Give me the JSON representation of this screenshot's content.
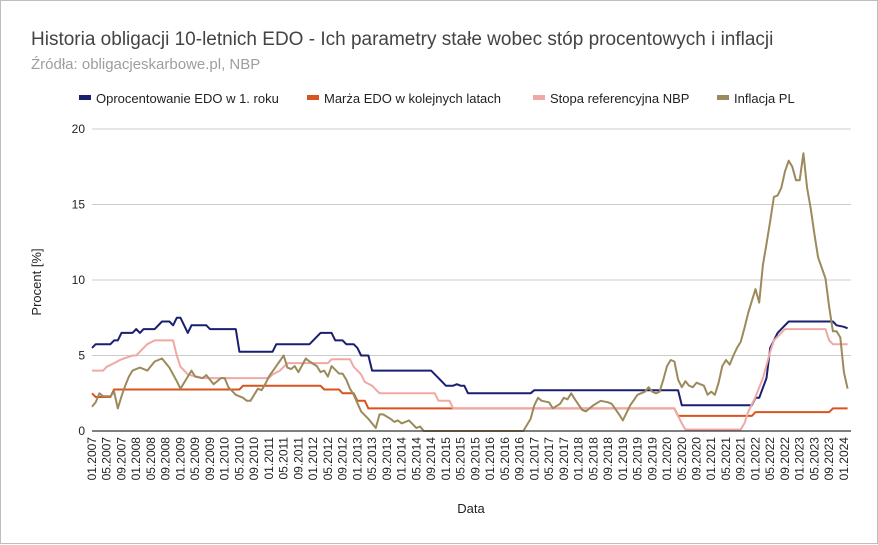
{
  "chart_data": {
    "type": "line",
    "title": "Historia obligacji 10-letnich EDO - Ich parametry stałe wobec stóp procentowych i inflacji",
    "subtitle": "Źródła: obligacjeskarbowe.pl, NBP",
    "xlabel": "Data",
    "ylabel": "Procent [%]",
    "ylim": [
      0,
      20
    ],
    "yticks": [
      "0",
      "5",
      "10",
      "15",
      "20"
    ],
    "grid": true,
    "legend": "top",
    "xticks": [
      "01.2007",
      "05.2007",
      "09.2007",
      "01.2008",
      "05.2008",
      "09.2008",
      "01.2009",
      "05.2009",
      "09.2009",
      "01.2010",
      "05.2010",
      "09.2010",
      "01.2011",
      "05.2011",
      "09.2011",
      "01.2012",
      "05.2012",
      "09.2012",
      "01.2013",
      "05.2013",
      "09.2013",
      "01.2014",
      "05.2014",
      "09.2014",
      "01.2015",
      "05.2015",
      "09.2015",
      "01.2016",
      "05.2016",
      "09.2016",
      "01.2017",
      "05.2017",
      "09.2017",
      "01.2018",
      "05.2018",
      "09.2018",
      "01.2019",
      "05.2019",
      "09.2019",
      "01.2020",
      "05.2020",
      "09.2020",
      "01.2021",
      "05.2021",
      "09.2021",
      "01.2022",
      "05.2022",
      "09.2022",
      "01.2023",
      "05.2023",
      "09.2023",
      "01.2024"
    ],
    "series": [
      {
        "name": "Oprocentowanie EDO w 1. roku",
        "color": "#1a1f71",
        "points": [
          [
            "2007-01",
            5.5
          ],
          [
            "2007-02",
            5.75
          ],
          [
            "2007-06",
            5.75
          ],
          [
            "2007-07",
            6.0
          ],
          [
            "2007-08",
            6.0
          ],
          [
            "2007-09",
            6.5
          ],
          [
            "2007-12",
            6.5
          ],
          [
            "2008-01",
            6.75
          ],
          [
            "2008-02",
            6.5
          ],
          [
            "2008-03",
            6.75
          ],
          [
            "2008-06",
            6.75
          ],
          [
            "2008-08",
            7.25
          ],
          [
            "2008-10",
            7.25
          ],
          [
            "2008-11",
            7.0
          ],
          [
            "2008-12",
            7.5
          ],
          [
            "2009-01",
            7.5
          ],
          [
            "2009-03",
            6.5
          ],
          [
            "2009-04",
            7.0
          ],
          [
            "2009-08",
            7.0
          ],
          [
            "2009-09",
            6.75
          ],
          [
            "2010-04",
            6.75
          ],
          [
            "2010-05",
            5.25
          ],
          [
            "2011-02",
            5.25
          ],
          [
            "2011-03",
            5.75
          ],
          [
            "2011-12",
            5.75
          ],
          [
            "2012-01",
            6.0
          ],
          [
            "2012-03",
            6.5
          ],
          [
            "2012-06",
            6.5
          ],
          [
            "2012-07",
            6.0
          ],
          [
            "2012-09",
            6.0
          ],
          [
            "2012-10",
            5.75
          ],
          [
            "2012-12",
            5.75
          ],
          [
            "2013-01",
            5.5
          ],
          [
            "2013-02",
            5.0
          ],
          [
            "2013-04",
            5.0
          ],
          [
            "2013-05",
            4.0
          ],
          [
            "2014-09",
            4.0
          ],
          [
            "2014-11",
            3.5
          ],
          [
            "2015-01",
            3.0
          ],
          [
            "2015-03",
            3.0
          ],
          [
            "2015-04",
            3.1
          ],
          [
            "2015-05",
            3.0
          ],
          [
            "2015-06",
            3.0
          ],
          [
            "2015-07",
            2.5
          ],
          [
            "2016-12",
            2.5
          ],
          [
            "2017-01",
            2.7
          ],
          [
            "2020-04",
            2.7
          ],
          [
            "2020-05",
            1.7
          ],
          [
            "2021-12",
            1.7
          ],
          [
            "2022-01",
            2.2
          ],
          [
            "2022-02",
            2.2
          ],
          [
            "2022-04",
            3.5
          ],
          [
            "2022-05",
            5.5
          ],
          [
            "2022-07",
            6.5
          ],
          [
            "2022-08",
            6.75
          ],
          [
            "2022-10",
            7.25
          ],
          [
            "2023-10",
            7.25
          ],
          [
            "2023-11",
            7.0
          ],
          [
            "2024-01",
            6.9
          ],
          [
            "2024-02",
            6.8
          ]
        ]
      },
      {
        "name": "Marża EDO w kolejnych latach",
        "color": "#d9531e",
        "points": [
          [
            "2007-01",
            2.5
          ],
          [
            "2007-02",
            2.25
          ],
          [
            "2007-06",
            2.25
          ],
          [
            "2007-07",
            2.75
          ],
          [
            "2010-05",
            2.75
          ],
          [
            "2010-06",
            3.0
          ],
          [
            "2012-03",
            3.0
          ],
          [
            "2012-04",
            2.75
          ],
          [
            "2012-08",
            2.75
          ],
          [
            "2012-09",
            2.5
          ],
          [
            "2012-12",
            2.5
          ],
          [
            "2013-01",
            2.0
          ],
          [
            "2013-03",
            2.0
          ],
          [
            "2013-04",
            1.5
          ],
          [
            "2020-03",
            1.5
          ],
          [
            "2020-04",
            1.0
          ],
          [
            "2021-12",
            1.0
          ],
          [
            "2022-01",
            1.25
          ],
          [
            "2023-09",
            1.25
          ],
          [
            "2023-10",
            1.5
          ],
          [
            "2024-02",
            1.5
          ]
        ]
      },
      {
        "name": "Stopa referencyjna NBP",
        "color": "#f0a8a4",
        "points": [
          [
            "2007-01",
            4.0
          ],
          [
            "2007-04",
            4.0
          ],
          [
            "2007-05",
            4.25
          ],
          [
            "2007-07",
            4.5
          ],
          [
            "2007-09",
            4.75
          ],
          [
            "2007-12",
            5.0
          ],
          [
            "2008-01",
            5.0
          ],
          [
            "2008-02",
            5.25
          ],
          [
            "2008-03",
            5.5
          ],
          [
            "2008-04",
            5.75
          ],
          [
            "2008-06",
            6.0
          ],
          [
            "2008-11",
            6.0
          ],
          [
            "2008-12",
            5.0
          ],
          [
            "2009-01",
            4.25
          ],
          [
            "2009-02",
            4.0
          ],
          [
            "2009-03",
            3.75
          ],
          [
            "2009-07",
            3.5
          ],
          [
            "2011-01",
            3.5
          ],
          [
            "2011-02",
            3.75
          ],
          [
            "2011-04",
            4.0
          ],
          [
            "2011-05",
            4.25
          ],
          [
            "2011-06",
            4.5
          ],
          [
            "2012-05",
            4.5
          ],
          [
            "2012-06",
            4.75
          ],
          [
            "2012-11",
            4.75
          ],
          [
            "2012-12",
            4.25
          ],
          [
            "2013-01",
            4.0
          ],
          [
            "2013-02",
            3.75
          ],
          [
            "2013-03",
            3.25
          ],
          [
            "2013-05",
            3.0
          ],
          [
            "2013-07",
            2.5
          ],
          [
            "2014-10",
            2.5
          ],
          [
            "2014-11",
            2.0
          ],
          [
            "2015-02",
            2.0
          ],
          [
            "2015-03",
            1.5
          ],
          [
            "2020-03",
            1.5
          ],
          [
            "2020-04",
            1.0
          ],
          [
            "2020-05",
            0.5
          ],
          [
            "2020-06",
            0.1
          ],
          [
            "2021-09",
            0.1
          ],
          [
            "2021-10",
            0.5
          ],
          [
            "2021-11",
            1.25
          ],
          [
            "2022-01",
            2.25
          ],
          [
            "2022-03",
            3.5
          ],
          [
            "2022-05",
            5.25
          ],
          [
            "2022-06",
            6.0
          ],
          [
            "2022-09",
            6.75
          ],
          [
            "2023-08",
            6.75
          ],
          [
            "2023-09",
            6.0
          ],
          [
            "2023-10",
            5.75
          ],
          [
            "2024-02",
            5.75
          ]
        ]
      },
      {
        "name": "Inflacja PL",
        "color": "#9c8a5c",
        "points": [
          [
            "2007-01",
            1.6
          ],
          [
            "2007-02",
            1.9
          ],
          [
            "2007-03",
            2.5
          ],
          [
            "2007-04",
            2.3
          ],
          [
            "2007-06",
            2.3
          ],
          [
            "2007-07",
            2.6
          ],
          [
            "2007-08",
            1.5
          ],
          [
            "2007-09",
            2.3
          ],
          [
            "2007-10",
            3.0
          ],
          [
            "2007-11",
            3.6
          ],
          [
            "2007-12",
            4.0
          ],
          [
            "2008-02",
            4.2
          ],
          [
            "2008-04",
            4.0
          ],
          [
            "2008-06",
            4.6
          ],
          [
            "2008-08",
            4.8
          ],
          [
            "2008-10",
            4.2
          ],
          [
            "2008-12",
            3.3
          ],
          [
            "2009-01",
            2.8
          ],
          [
            "2009-03",
            3.6
          ],
          [
            "2009-04",
            4.0
          ],
          [
            "2009-05",
            3.6
          ],
          [
            "2009-07",
            3.5
          ],
          [
            "2009-08",
            3.7
          ],
          [
            "2009-10",
            3.1
          ],
          [
            "2009-12",
            3.5
          ],
          [
            "2010-01",
            3.5
          ],
          [
            "2010-02",
            2.9
          ],
          [
            "2010-04",
            2.4
          ],
          [
            "2010-06",
            2.2
          ],
          [
            "2010-07",
            2.0
          ],
          [
            "2010-08",
            2.0
          ],
          [
            "2010-10",
            2.8
          ],
          [
            "2010-11",
            2.7
          ],
          [
            "2010-12",
            3.1
          ],
          [
            "2011-01",
            3.6
          ],
          [
            "2011-03",
            4.3
          ],
          [
            "2011-05",
            5.0
          ],
          [
            "2011-06",
            4.2
          ],
          [
            "2011-07",
            4.1
          ],
          [
            "2011-08",
            4.3
          ],
          [
            "2011-09",
            3.9
          ],
          [
            "2011-11",
            4.8
          ],
          [
            "2011-12",
            4.6
          ],
          [
            "2012-02",
            4.3
          ],
          [
            "2012-03",
            3.9
          ],
          [
            "2012-04",
            4.0
          ],
          [
            "2012-05",
            3.6
          ],
          [
            "2012-06",
            4.3
          ],
          [
            "2012-08",
            3.8
          ],
          [
            "2012-09",
            3.8
          ],
          [
            "2012-10",
            3.4
          ],
          [
            "2012-11",
            2.8
          ],
          [
            "2012-12",
            2.4
          ],
          [
            "2013-02",
            1.3
          ],
          [
            "2013-04",
            0.8
          ],
          [
            "2013-06",
            0.2
          ],
          [
            "2013-07",
            1.1
          ],
          [
            "2013-08",
            1.1
          ],
          [
            "2013-10",
            0.8
          ],
          [
            "2013-11",
            0.6
          ],
          [
            "2013-12",
            0.7
          ],
          [
            "2014-01",
            0.5
          ],
          [
            "2014-03",
            0.7
          ],
          [
            "2014-05",
            0.2
          ],
          [
            "2014-06",
            0.3
          ],
          [
            "2014-07",
            0.0
          ],
          [
            "2016-10",
            0.0
          ],
          [
            "2016-12",
            0.8
          ],
          [
            "2017-01",
            1.7
          ],
          [
            "2017-02",
            2.2
          ],
          [
            "2017-03",
            2.0
          ],
          [
            "2017-05",
            1.9
          ],
          [
            "2017-06",
            1.5
          ],
          [
            "2017-08",
            1.8
          ],
          [
            "2017-09",
            2.2
          ],
          [
            "2017-10",
            2.1
          ],
          [
            "2017-11",
            2.5
          ],
          [
            "2017-12",
            2.1
          ],
          [
            "2018-02",
            1.4
          ],
          [
            "2018-03",
            1.3
          ],
          [
            "2018-05",
            1.7
          ],
          [
            "2018-07",
            2.0
          ],
          [
            "2018-09",
            1.9
          ],
          [
            "2018-10",
            1.8
          ],
          [
            "2018-12",
            1.1
          ],
          [
            "2019-01",
            0.7
          ],
          [
            "2019-02",
            1.2
          ],
          [
            "2019-03",
            1.7
          ],
          [
            "2019-05",
            2.4
          ],
          [
            "2019-07",
            2.6
          ],
          [
            "2019-08",
            2.9
          ],
          [
            "2019-09",
            2.6
          ],
          [
            "2019-10",
            2.5
          ],
          [
            "2019-11",
            2.6
          ],
          [
            "2019-12",
            3.4
          ],
          [
            "2020-01",
            4.3
          ],
          [
            "2020-02",
            4.7
          ],
          [
            "2020-03",
            4.6
          ],
          [
            "2020-04",
            3.4
          ],
          [
            "2020-05",
            2.9
          ],
          [
            "2020-06",
            3.3
          ],
          [
            "2020-07",
            3.0
          ],
          [
            "2020-08",
            2.9
          ],
          [
            "2020-09",
            3.2
          ],
          [
            "2020-10",
            3.1
          ],
          [
            "2020-11",
            3.0
          ],
          [
            "2020-12",
            2.4
          ],
          [
            "2021-01",
            2.6
          ],
          [
            "2021-02",
            2.4
          ],
          [
            "2021-03",
            3.2
          ],
          [
            "2021-04",
            4.3
          ],
          [
            "2021-05",
            4.7
          ],
          [
            "2021-06",
            4.4
          ],
          [
            "2021-07",
            5.0
          ],
          [
            "2021-08",
            5.5
          ],
          [
            "2021-09",
            5.9
          ],
          [
            "2021-10",
            6.8
          ],
          [
            "2021-11",
            7.8
          ],
          [
            "2021-12",
            8.6
          ],
          [
            "2022-01",
            9.4
          ],
          [
            "2022-02",
            8.5
          ],
          [
            "2022-03",
            11.0
          ],
          [
            "2022-04",
            12.4
          ],
          [
            "2022-05",
            13.9
          ],
          [
            "2022-06",
            15.5
          ],
          [
            "2022-07",
            15.6
          ],
          [
            "2022-08",
            16.1
          ],
          [
            "2022-09",
            17.2
          ],
          [
            "2022-10",
            17.9
          ],
          [
            "2022-11",
            17.5
          ],
          [
            "2022-12",
            16.6
          ],
          [
            "2023-01",
            16.6
          ],
          [
            "2023-02",
            18.4
          ],
          [
            "2023-03",
            16.1
          ],
          [
            "2023-04",
            14.7
          ],
          [
            "2023-05",
            13.0
          ],
          [
            "2023-06",
            11.5
          ],
          [
            "2023-07",
            10.8
          ],
          [
            "2023-08",
            10.1
          ],
          [
            "2023-09",
            8.2
          ],
          [
            "2023-10",
            6.6
          ],
          [
            "2023-11",
            6.6
          ],
          [
            "2023-12",
            6.2
          ],
          [
            "2024-01",
            3.9
          ],
          [
            "2024-02",
            2.8
          ]
        ]
      }
    ]
  }
}
